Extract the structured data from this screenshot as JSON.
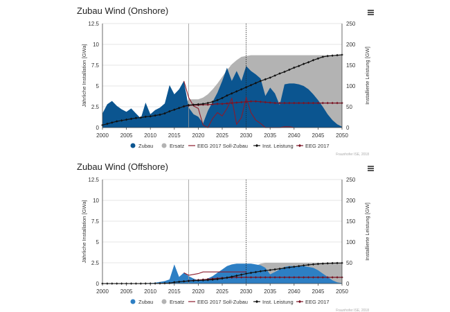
{
  "colors": {
    "zubau": "#0b5590",
    "zubau_offshore": "#2d7fc4",
    "ersatz": "#b3b3b3",
    "eeg_soll": "#8b1a2b",
    "inst": "#111111",
    "eeg2017": "#7a1424",
    "grid": "#dddddd",
    "ref_line": "#999999"
  },
  "credit": "Fraunhofer ISE, 2018",
  "chart_data": [
    {
      "type": "area",
      "title": "Zubau Wind (Onshore)",
      "ylabel": "Jährliche Installation [GWa]",
      "y2label": "Installierte Leistung [GW]",
      "xlim": [
        2000,
        2050
      ],
      "ylim": [
        0,
        12.5
      ],
      "y2lim": [
        0,
        250
      ],
      "x_ticks": [
        2000,
        2005,
        2010,
        2015,
        2020,
        2025,
        2030,
        2035,
        2040,
        2045,
        2050
      ],
      "y_ticks": [
        0,
        2.5,
        5,
        7.5,
        10,
        12.5
      ],
      "y2_ticks": [
        0,
        50,
        100,
        150,
        200,
        250
      ],
      "y_tick_labels": [
        "0",
        "2.5",
        "5",
        "7.5",
        "10",
        "12.5"
      ],
      "y2_tick_labels": [
        "0",
        "50",
        "100",
        "150",
        "200",
        "250"
      ],
      "ref_lines": [
        {
          "x": 2018,
          "style": "solid"
        },
        {
          "x": 2030,
          "style": "dotted"
        }
      ],
      "legend": [
        "Zubau",
        "Ersatz",
        "EEG 2017 Soll-Zubau",
        "Inst. Leistung",
        "EEG 2017"
      ],
      "series": [
        {
          "name": "Ersatz",
          "kind": "area",
          "axis": "left",
          "x": [
            2000,
            2017,
            2018,
            2019,
            2020,
            2021,
            2022,
            2023,
            2024,
            2025,
            2026,
            2027,
            2028,
            2029,
            2030,
            2031,
            2032,
            2050
          ],
          "values": [
            0,
            2.5,
            3.4,
            3.4,
            3.4,
            3.6,
            4.0,
            4.6,
            5.3,
            6.1,
            6.9,
            7.6,
            8.1,
            8.5,
            8.6,
            8.7,
            8.7,
            8.7
          ]
        },
        {
          "name": "Zubau",
          "kind": "area",
          "axis": "left",
          "x": [
            2000,
            2001,
            2002,
            2003,
            2004,
            2005,
            2006,
            2007,
            2008,
            2009,
            2010,
            2011,
            2012,
            2013,
            2014,
            2015,
            2016,
            2017,
            2018,
            2019,
            2020,
            2021,
            2022,
            2023,
            2024,
            2025,
            2026,
            2027,
            2028,
            2029,
            2030,
            2031,
            2032,
            2033,
            2034,
            2035,
            2036,
            2037,
            2038,
            2039,
            2040,
            2041,
            2042,
            2043,
            2044,
            2045,
            2046,
            2047,
            2048,
            2049,
            2050
          ],
          "values": [
            1.7,
            2.8,
            3.2,
            2.6,
            2.2,
            1.9,
            2.3,
            1.7,
            1.1,
            3.0,
            1.6,
            2.1,
            2.4,
            2.9,
            5.1,
            4.0,
            4.6,
            5.6,
            2.4,
            1.6,
            1.3,
            0.5,
            2.0,
            3.1,
            4.2,
            5.6,
            7.2,
            5.6,
            6.8,
            5.6,
            7.4,
            6.8,
            6.4,
            5.9,
            3.8,
            4.8,
            4.1,
            2.7,
            5.2,
            5.3,
            5.3,
            5.2,
            5.0,
            4.6,
            4.0,
            3.3,
            2.5,
            1.6,
            0.9,
            0.4,
            0.1
          ]
        },
        {
          "name": "EEG 2017 Soll-Zubau",
          "kind": "line",
          "axis": "left",
          "x": [
            2017,
            2018,
            2019,
            2020,
            2021,
            2022,
            2023,
            2024,
            2025,
            2026,
            2027,
            2028,
            2029,
            2030,
            2031,
            2032,
            2033,
            2034,
            2035,
            2036,
            2037,
            2038,
            2039,
            2040
          ],
          "values": [
            5.6,
            3.6,
            2.6,
            2.3,
            0.3,
            0.0,
            1.1,
            1.8,
            1.4,
            2.3,
            3.5,
            0.4,
            1.2,
            3.6,
            1.8,
            0.9,
            0.5,
            0.0,
            0.0,
            0.0,
            0.0,
            0.1,
            0.1,
            0.0
          ]
        },
        {
          "name": "Inst. Leistung",
          "kind": "line-markers",
          "axis": "right",
          "x": [
            2000,
            2001,
            2002,
            2003,
            2004,
            2005,
            2006,
            2007,
            2008,
            2009,
            2010,
            2011,
            2012,
            2013,
            2014,
            2015,
            2016,
            2017,
            2018,
            2019,
            2020,
            2021,
            2022,
            2023,
            2024,
            2025,
            2026,
            2027,
            2028,
            2029,
            2030,
            2031,
            2032,
            2033,
            2034,
            2035,
            2036,
            2037,
            2038,
            2039,
            2040,
            2041,
            2042,
            2043,
            2044,
            2045,
            2046,
            2047,
            2048,
            2049,
            2050
          ],
          "values": [
            6,
            9,
            12,
            15,
            17,
            19,
            21,
            23,
            24,
            26,
            27,
            29,
            31,
            34,
            39,
            43,
            47,
            51,
            54,
            55,
            56,
            57,
            59,
            62,
            66,
            71,
            77,
            82,
            87,
            92,
            97,
            102,
            107,
            112,
            116,
            120,
            125,
            130,
            134,
            139,
            144,
            148,
            153,
            157,
            162,
            166,
            170,
            172,
            173,
            174,
            175
          ]
        },
        {
          "name": "EEG 2017",
          "kind": "line-markers",
          "axis": "right",
          "x": [
            2017,
            2018,
            2019,
            2020,
            2021,
            2022,
            2023,
            2024,
            2025,
            2026,
            2027,
            2028,
            2029,
            2030,
            2031,
            2032,
            2033,
            2034,
            2035,
            2036,
            2037,
            2038,
            2039,
            2040,
            2041,
            2042,
            2043,
            2044,
            2045,
            2046,
            2047,
            2048,
            2049,
            2050
          ],
          "values": [
            51,
            53,
            54,
            54,
            55,
            55,
            56,
            57,
            57,
            58,
            59,
            60,
            61,
            62,
            63,
            63,
            62,
            61,
            60,
            59,
            59,
            59,
            59,
            59,
            59,
            59,
            59,
            59,
            59,
            59,
            59,
            59,
            59,
            59
          ]
        }
      ]
    },
    {
      "type": "area",
      "title": "Zubau Wind (Offshore)",
      "ylabel": "Jährliche Installation [GWa]",
      "y2label": "Installierte Leistung [GW]",
      "xlim": [
        2000,
        2050
      ],
      "ylim": [
        0,
        12.5
      ],
      "y2lim": [
        0,
        250
      ],
      "x_ticks": [
        2000,
        2005,
        2010,
        2015,
        2020,
        2025,
        2030,
        2035,
        2040,
        2045,
        2050
      ],
      "y_ticks": [
        0,
        2.5,
        5,
        7.5,
        10,
        12.5
      ],
      "y2_ticks": [
        0,
        50,
        100,
        150,
        200,
        250
      ],
      "y_tick_labels": [
        "0",
        "2.5",
        "5",
        "7.5",
        "10",
        "12.5"
      ],
      "y2_tick_labels": [
        "0",
        "50",
        "100",
        "150",
        "200",
        "250"
      ],
      "ref_lines": [
        {
          "x": 2018,
          "style": "solid"
        },
        {
          "x": 2030,
          "style": "dotted"
        }
      ],
      "legend": [
        "Zubau",
        "Ersatz",
        "EEG 2017 Soll-Zubau",
        "Inst. Leistung",
        "EEG 2017"
      ],
      "series": [
        {
          "name": "Ersatz",
          "kind": "area",
          "axis": "left",
          "x": [
            2000,
            2029,
            2030,
            2031,
            2032,
            2033,
            2034,
            2050
          ],
          "values": [
            0,
            0,
            0.8,
            1.6,
            2.1,
            2.4,
            2.5,
            2.5
          ]
        },
        {
          "name": "Zubau",
          "kind": "area",
          "axis": "left",
          "x": [
            2000,
            2008,
            2009,
            2010,
            2011,
            2012,
            2013,
            2014,
            2015,
            2016,
            2017,
            2018,
            2019,
            2020,
            2021,
            2022,
            2023,
            2024,
            2025,
            2026,
            2027,
            2028,
            2029,
            2030,
            2031,
            2032,
            2033,
            2034,
            2035,
            2036,
            2037,
            2038,
            2039,
            2040,
            2041,
            2042,
            2043,
            2044,
            2045,
            2046,
            2047,
            2048,
            2049,
            2050
          ],
          "values": [
            0,
            0,
            0.05,
            0.05,
            0.1,
            0.2,
            0.3,
            0.5,
            2.3,
            0.8,
            1.3,
            0.9,
            0.6,
            0.4,
            0.4,
            0.6,
            0.9,
            1.3,
            1.7,
            2.1,
            2.3,
            2.4,
            2.4,
            2.4,
            2.4,
            2.3,
            2.2,
            1.9,
            1.1,
            1.4,
            1.7,
            2.0,
            2.1,
            2.1,
            2.1,
            2.1,
            2.0,
            1.9,
            1.6,
            1.2,
            0.8,
            0.4,
            0.15,
            0.05
          ]
        },
        {
          "name": "EEG 2017 Soll-Zubau",
          "kind": "line",
          "axis": "left",
          "x": [
            2017,
            2018,
            2019,
            2020,
            2021,
            2022,
            2023,
            2024,
            2025,
            2026,
            2027,
            2028,
            2029,
            2030
          ],
          "values": [
            1.3,
            1.0,
            1.1,
            1.2,
            1.4,
            1.4,
            1.4,
            1.4,
            1.4,
            1.4,
            1.4,
            1.4,
            1.4,
            1.4
          ]
        },
        {
          "name": "Inst. Leistung",
          "kind": "line-markers",
          "axis": "right",
          "x": [
            2000,
            2001,
            2002,
            2003,
            2004,
            2005,
            2006,
            2007,
            2008,
            2009,
            2010,
            2011,
            2012,
            2013,
            2014,
            2015,
            2016,
            2017,
            2018,
            2019,
            2020,
            2021,
            2022,
            2023,
            2024,
            2025,
            2026,
            2027,
            2028,
            2029,
            2030,
            2031,
            2032,
            2033,
            2034,
            2035,
            2036,
            2037,
            2038,
            2039,
            2040,
            2041,
            2042,
            2043,
            2044,
            2045,
            2046,
            2047,
            2048,
            2049,
            2050
          ],
          "values": [
            0,
            0,
            0,
            0,
            0,
            0,
            0,
            0,
            0,
            0.1,
            0.2,
            0.3,
            0.5,
            0.8,
            1.2,
            3.2,
            4.2,
            5.4,
            6.4,
            7.0,
            7.6,
            8.0,
            8.6,
            9.4,
            10.6,
            12.2,
            14.2,
            16.6,
            19.0,
            21.4,
            23.8,
            25.8,
            27.6,
            29.6,
            31.2,
            32.5,
            34.0,
            35.6,
            37.2,
            38.8,
            40.4,
            42.0,
            43.6,
            45.0,
            46.2,
            47.2,
            48.0,
            48.7,
            49.1,
            49.3,
            49.5
          ]
        },
        {
          "name": "EEG 2017",
          "kind": "line-markers",
          "axis": "right",
          "x": [
            2017,
            2018,
            2019,
            2020,
            2021,
            2022,
            2023,
            2024,
            2025,
            2026,
            2027,
            2028,
            2029,
            2030,
            2031,
            2032,
            2033,
            2034,
            2035,
            2036,
            2037,
            2038,
            2039,
            2040,
            2041,
            2042,
            2043,
            2044,
            2045,
            2046,
            2047,
            2048,
            2049,
            2050
          ],
          "values": [
            5.4,
            6.4,
            7.5,
            8.5,
            9.5,
            10.5,
            11.5,
            12.5,
            13.5,
            14.0,
            14.5,
            15.0,
            15.0,
            15.0,
            15.0,
            15.0,
            15.0,
            15.0,
            15.0,
            15.0,
            15.0,
            15.0,
            15.0,
            15.0,
            15.0,
            15.0,
            15.0,
            15.0,
            15.0,
            15.0,
            15.0,
            15.0,
            15.0,
            15.0
          ]
        }
      ]
    }
  ]
}
